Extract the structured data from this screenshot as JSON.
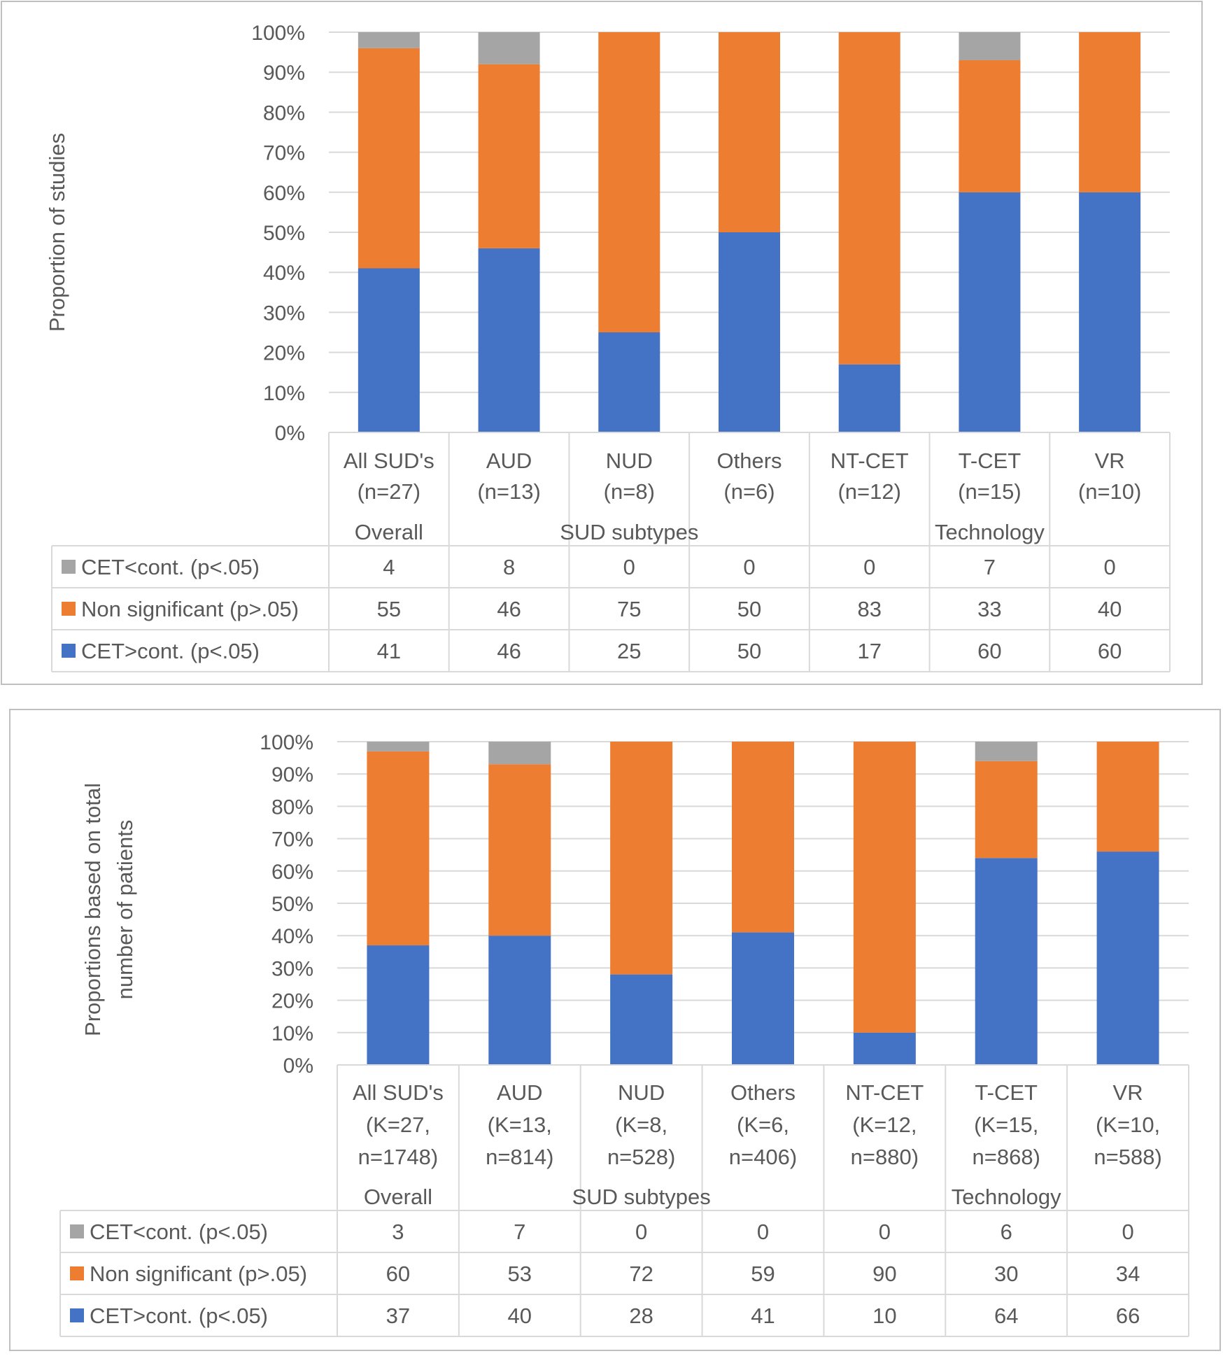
{
  "colors": {
    "cet_better": "#4472C4",
    "non_significant": "#ED7D31",
    "cet_worse": "#A5A5A5",
    "grid": "#D9D9D9",
    "text": "#595959",
    "table_border": "#D9D9D9",
    "frame_border": "#BFBFBF"
  },
  "chart_data": [
    {
      "type": "bar",
      "stacked": true,
      "ylabel": "Proportion of studies",
      "ylim": [
        0,
        100
      ],
      "yticks": [
        "0%",
        "10%",
        "20%",
        "30%",
        "40%",
        "50%",
        "60%",
        "70%",
        "80%",
        "90%",
        "100%"
      ],
      "category_lines": [
        [
          "All SUD's",
          "(n=27)"
        ],
        [
          "AUD",
          "(n=13)"
        ],
        [
          "NUD",
          "(n=8)"
        ],
        [
          "Others",
          "(n=6)"
        ],
        [
          "NT-CET",
          "(n=12)"
        ],
        [
          "T-CET",
          "(n=15)"
        ],
        [
          "VR",
          "(n=10)"
        ]
      ],
      "groups": [
        {
          "label": "Overall",
          "start": 0,
          "span": 1
        },
        {
          "label": "SUD subtypes",
          "start": 1,
          "span": 3
        },
        {
          "label": "Technology",
          "start": 4,
          "span": 3
        }
      ],
      "series": [
        {
          "name": "CET<cont. (p<.05)",
          "color_key": "cet_worse",
          "values": [
            4,
            8,
            0,
            0,
            0,
            7,
            0
          ]
        },
        {
          "name": "Non significant (p>.05)",
          "color_key": "non_significant",
          "values": [
            55,
            46,
            75,
            50,
            83,
            33,
            40
          ]
        },
        {
          "name": "CET>cont. (p<.05)",
          "color_key": "cet_better",
          "values": [
            41,
            46,
            25,
            50,
            17,
            60,
            60
          ]
        }
      ],
      "stack_order": [
        2,
        1,
        0
      ]
    },
    {
      "type": "bar",
      "stacked": true,
      "ylabel": [
        "Proportions based on total",
        "number of patients"
      ],
      "ylim": [
        0,
        100
      ],
      "yticks": [
        "0%",
        "10%",
        "20%",
        "30%",
        "40%",
        "50%",
        "60%",
        "70%",
        "80%",
        "90%",
        "100%"
      ],
      "category_lines": [
        [
          "All SUD's",
          "(K=27,",
          "n=1748)"
        ],
        [
          "AUD",
          "(K=13,",
          "n=814)"
        ],
        [
          "NUD",
          "(K=8,",
          "n=528)"
        ],
        [
          "Others",
          "(K=6,",
          "n=406)"
        ],
        [
          "NT-CET",
          "(K=12,",
          "n=880)"
        ],
        [
          "T-CET",
          "(K=15,",
          "n=868)"
        ],
        [
          "VR",
          "(K=10,",
          "n=588)"
        ]
      ],
      "groups": [
        {
          "label": "Overall",
          "start": 0,
          "span": 1
        },
        {
          "label": "SUD subtypes",
          "start": 1,
          "span": 3
        },
        {
          "label": "Technology",
          "start": 4,
          "span": 3
        }
      ],
      "series": [
        {
          "name": "CET<cont. (p<.05)",
          "color_key": "cet_worse",
          "values": [
            3,
            7,
            0,
            0,
            0,
            6,
            0
          ]
        },
        {
          "name": "Non significant (p>.05)",
          "color_key": "non_significant",
          "values": [
            60,
            53,
            72,
            59,
            90,
            30,
            34
          ]
        },
        {
          "name": "CET>cont. (p<.05)",
          "color_key": "cet_better",
          "values": [
            37,
            40,
            28,
            41,
            10,
            64,
            66
          ]
        }
      ],
      "stack_order": [
        2,
        1,
        0
      ]
    }
  ]
}
